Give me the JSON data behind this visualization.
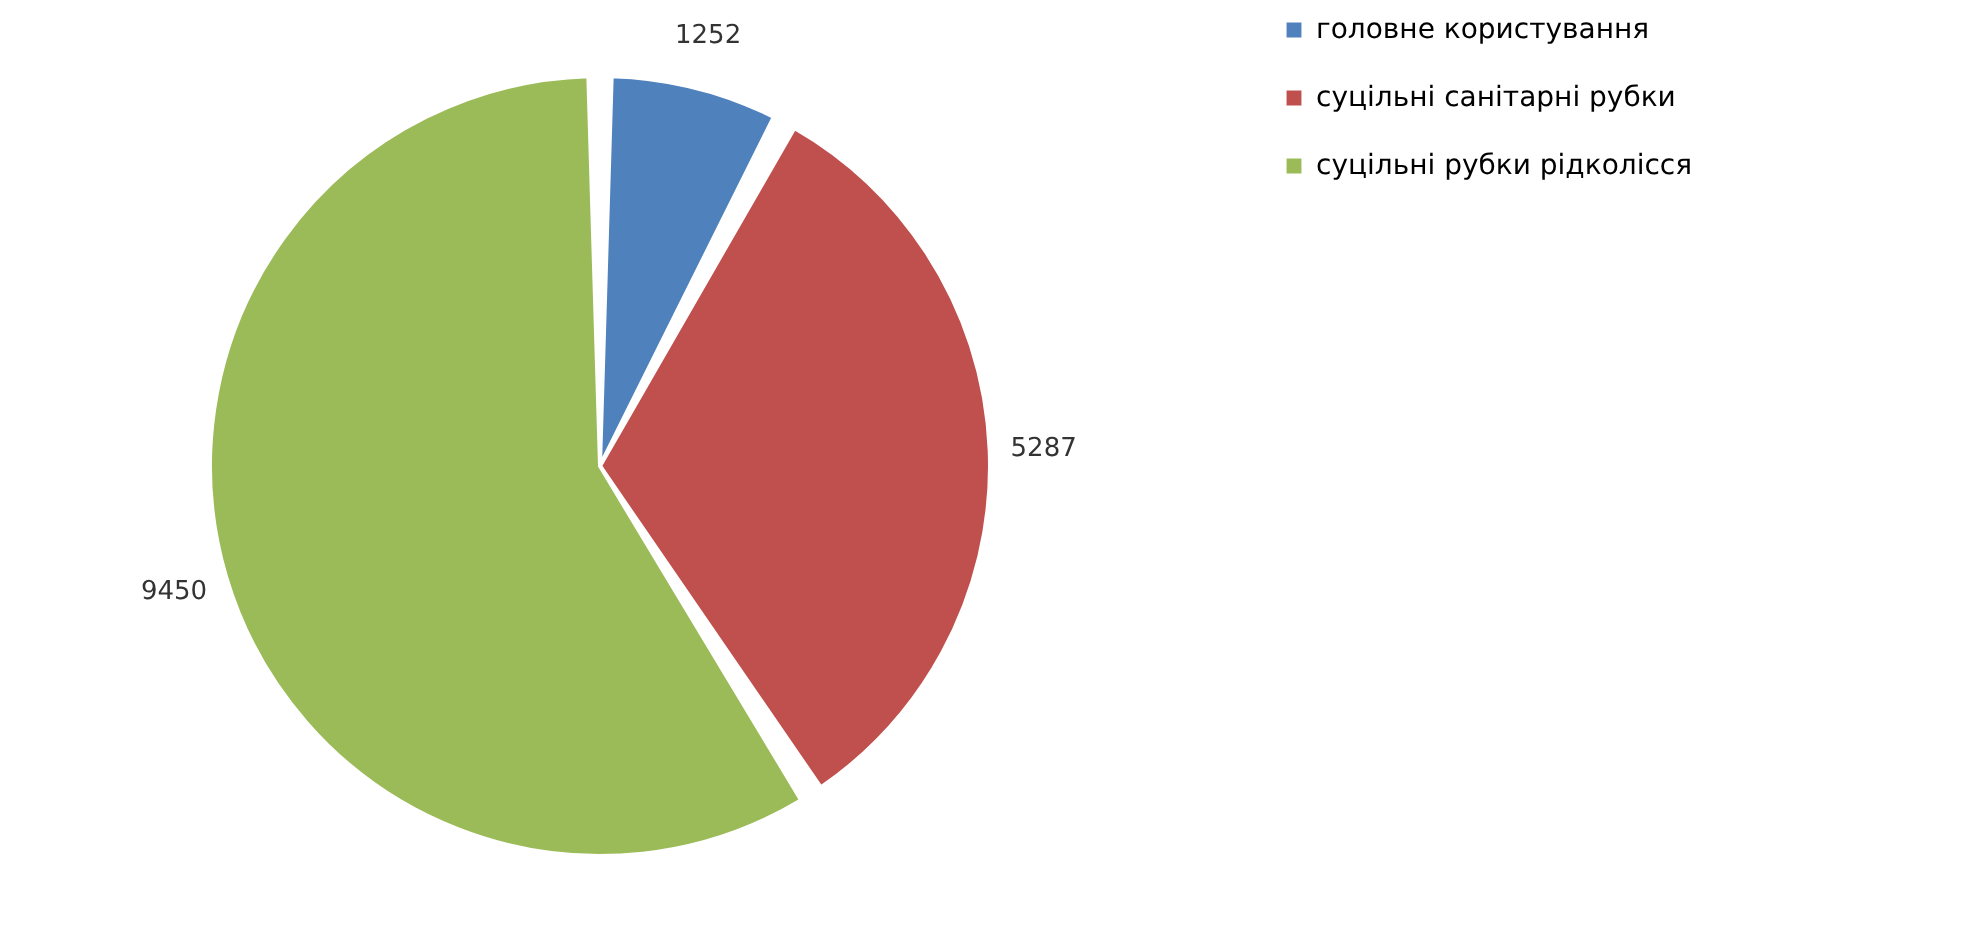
{
  "chart_data": {
    "type": "pie",
    "categories": [
      "головне користування",
      "суцільні санітарні рубки",
      "суцільні рубки рідколісся"
    ],
    "values": [
      1252,
      5287,
      9450
    ],
    "colors": [
      "#4f81bd",
      "#c0504d",
      "#9bbb59"
    ],
    "data_labels": true,
    "legend": "right"
  }
}
